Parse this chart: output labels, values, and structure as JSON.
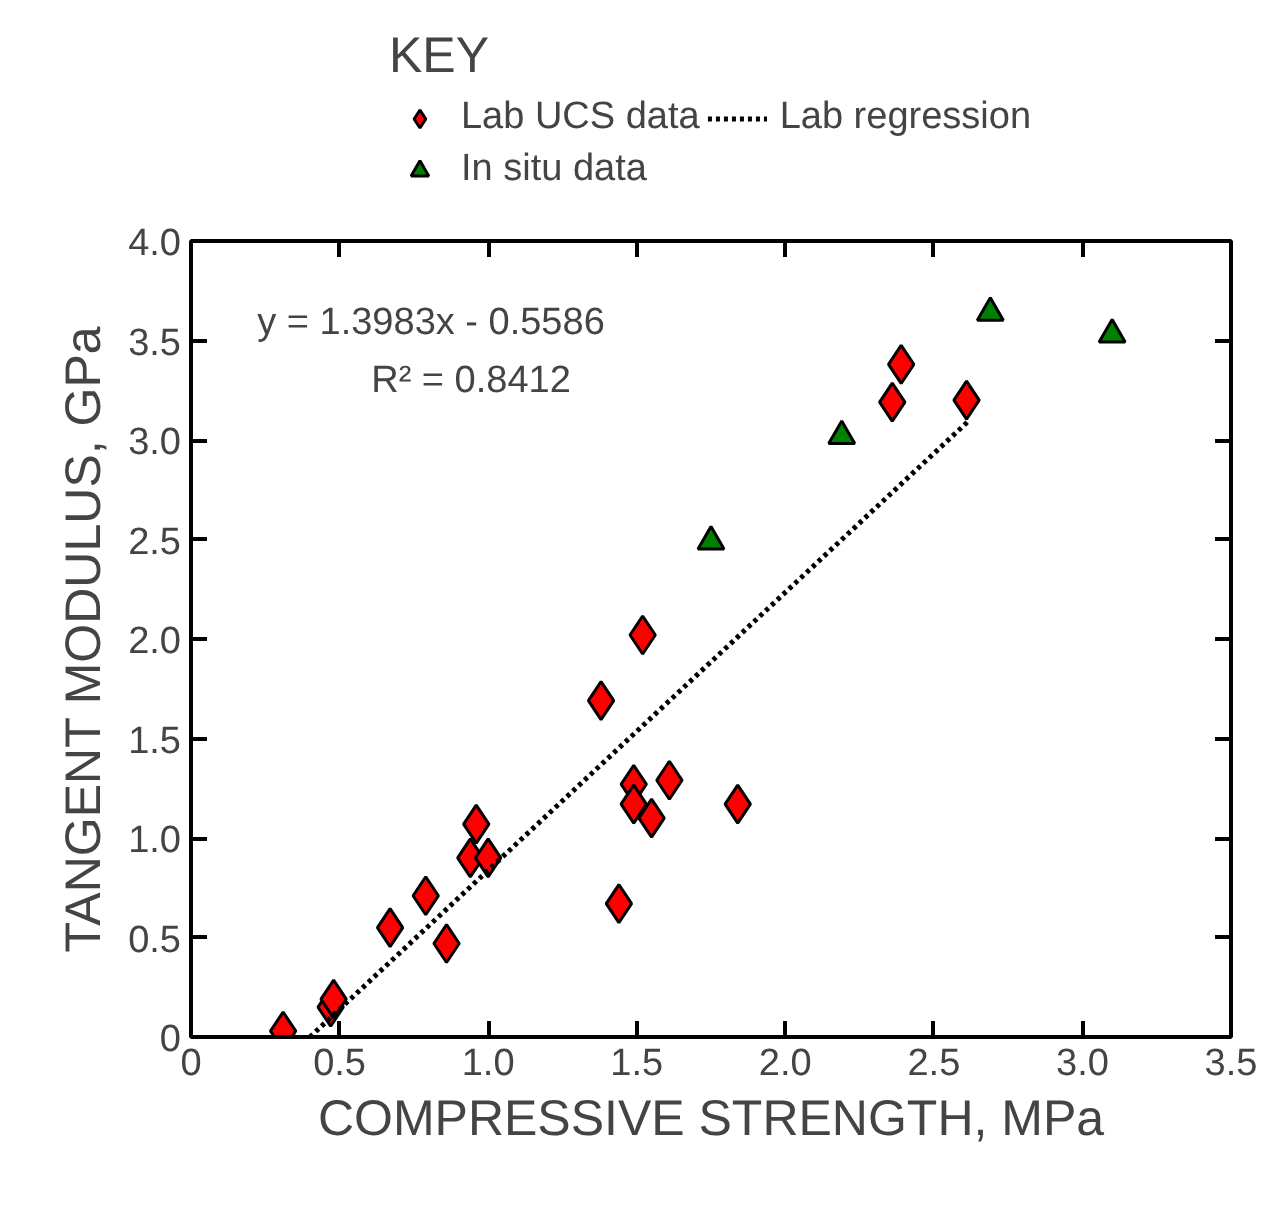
{
  "chart_data": {
    "type": "scatter",
    "xlabel": "COMPRESSIVE STRENGTH, MPa",
    "ylabel": "TANGENT MODULUS, GPa",
    "legend_title": "KEY",
    "legend": "top",
    "xlim": [
      0,
      3.5
    ],
    "ylim": [
      0,
      4.0
    ],
    "xticks": [
      0,
      {
        "value": 0.5,
        "label": "0.5"
      },
      {
        "value": 1,
        "label": "1.0"
      },
      {
        "value": 1.5,
        "label": "1.5"
      },
      {
        "value": 2,
        "label": "2.0"
      },
      {
        "value": 2.5,
        "label": "2.5"
      },
      {
        "value": 3,
        "label": "3.0"
      },
      {
        "value": 3.5,
        "label": "3.5"
      }
    ],
    "yticks": [
      0,
      {
        "value": 0.5,
        "label": "0.5"
      },
      {
        "value": 1,
        "label": "1.0"
      },
      {
        "value": 1.5,
        "label": "1.5"
      },
      {
        "value": 2,
        "label": "2.0"
      },
      {
        "value": 2.5,
        "label": "2.5"
      },
      {
        "value": 3,
        "label": "3.0"
      },
      {
        "value": 3.5,
        "label": "3.5"
      },
      {
        "value": 4,
        "label": "4.0"
      }
    ],
    "grid": false,
    "annotations": [
      "y = 1.3983x - 0.5586",
      "R² = 0.8412"
    ],
    "series": [
      {
        "name": "Lab UCS data",
        "marker": "diamond",
        "color": "#ff0000",
        "x": [
          0.31,
          0.47,
          0.48,
          0.67,
          0.79,
          0.86,
          0.96,
          0.94,
          1.0,
          1.38,
          1.52,
          1.49,
          1.49,
          1.55,
          1.61,
          1.44,
          1.84,
          2.39,
          2.36,
          2.61
        ],
        "values": [
          0.03,
          0.15,
          0.19,
          0.55,
          0.71,
          0.47,
          1.07,
          0.9,
          0.9,
          1.69,
          2.02,
          1.27,
          1.17,
          1.1,
          1.29,
          0.67,
          1.17,
          3.38,
          3.19,
          3.2
        ]
      },
      {
        "name": "Lab regression",
        "type": "line",
        "line_style": "dotted",
        "color": "#000000",
        "x": [
          0.4,
          2.62
        ],
        "values": [
          0.0,
          3.1
        ]
      },
      {
        "name": "In situ data",
        "marker": "triangle",
        "color": "#008000",
        "x": [
          1.75,
          2.19,
          2.69,
          3.1
        ],
        "values": [
          2.49,
          3.02,
          3.64,
          3.53
        ]
      }
    ]
  }
}
